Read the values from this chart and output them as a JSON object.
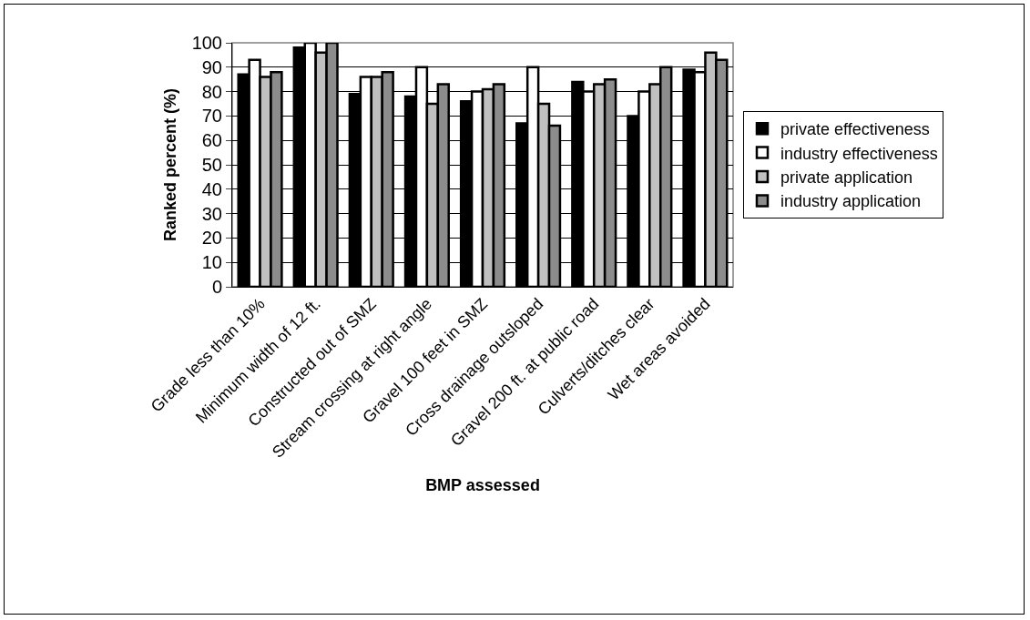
{
  "chart_data": {
    "type": "bar",
    "xlabel": "BMP assessed",
    "ylabel": "Ranked percent (%)",
    "categories": [
      "Grade less than 10%",
      "Minimum width of 12 ft.",
      "Constructed out of SMZ",
      "Stream crossing at right angle",
      "Gravel 100 feet in SMZ",
      "Cross drainage outsloped",
      "Gravel 200 ft. at public road",
      "Culverts/ditches clear",
      "Wet areas avoided"
    ],
    "series": [
      {
        "name": "private effectiveness",
        "color": "#000000",
        "values": [
          87,
          98,
          79,
          78,
          76,
          67,
          84,
          70,
          89
        ]
      },
      {
        "name": "industry effectiveness",
        "color": "#ffffff",
        "values": [
          93,
          100,
          86,
          90,
          80,
          90,
          80,
          80,
          88
        ]
      },
      {
        "name": "private application",
        "color": "#c0c0c0",
        "values": [
          86,
          96,
          86,
          75,
          81,
          75,
          83,
          83,
          96
        ]
      },
      {
        "name": "industry application",
        "color": "#8c8c8c",
        "values": [
          88,
          100,
          88,
          83,
          83,
          66,
          85,
          90,
          93
        ]
      }
    ],
    "ylim": [
      0,
      100
    ],
    "yticks": [
      0,
      10,
      20,
      30,
      40,
      50,
      60,
      70,
      80,
      90,
      100
    ],
    "grid": "y",
    "legend": "right"
  }
}
